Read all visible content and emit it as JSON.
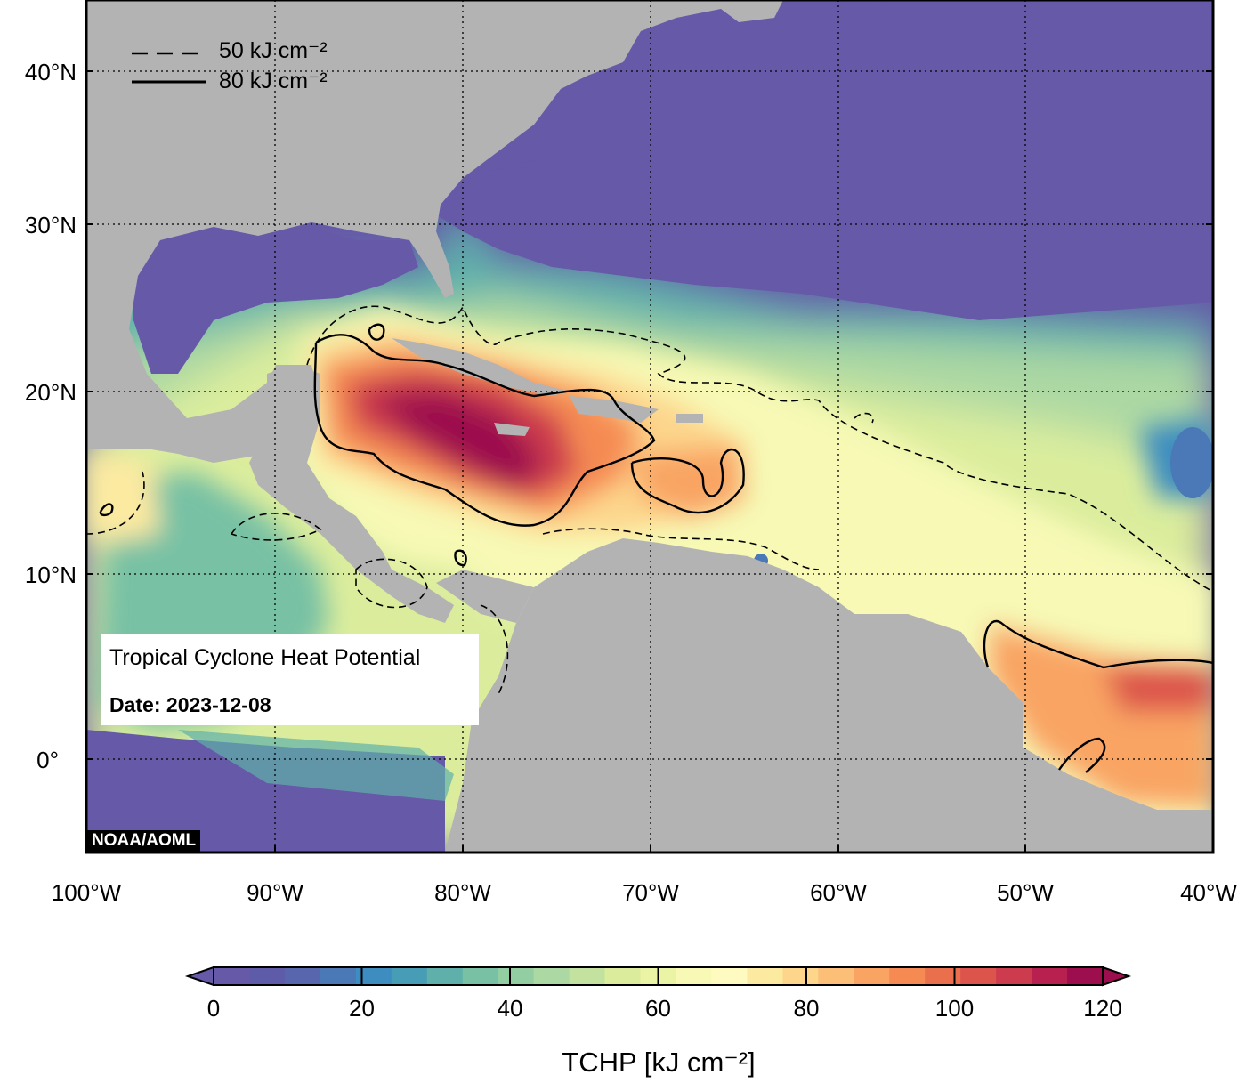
{
  "map": {
    "title": "Tropical Cyclone Heat Potential",
    "date_text": "Date: 2023-12-08",
    "credit": "NOAA/AOML",
    "lat_labels": [
      "40°N",
      "30°N",
      "20°N",
      "10°N",
      "0°"
    ],
    "lon_labels": [
      "100°W",
      "90°W",
      "80°W",
      "70°W",
      "60°W",
      "50°W",
      "40°W"
    ],
    "colors": {
      "ocean_low": "#6659a8",
      "land": "#b3b3b3",
      "frame": "#000000"
    }
  },
  "legend": {
    "dashed_label": "50 kJ cm⁻²",
    "solid_label": "80 kJ cm⁻²"
  },
  "colorbar": {
    "title": "TCHP [kJ cm⁻²]",
    "ticks": [
      "0",
      "20",
      "40",
      "60",
      "80",
      "100",
      "120"
    ],
    "min": 0,
    "max": 120,
    "step": 5,
    "colors": [
      "#6659a8",
      "#5e5ca9",
      "#5866ad",
      "#4b78b6",
      "#3d8dc0",
      "#479db6",
      "#5fb0aa",
      "#78c1a4",
      "#93cea3",
      "#acd8a3",
      "#c4e29f",
      "#dbed9d",
      "#ebf4a4",
      "#f7f9b5",
      "#fffbc0",
      "#fdeaa1",
      "#fdd68c",
      "#fcbf77",
      "#f9a463",
      "#f58b53",
      "#ea6f4c",
      "#dc554c",
      "#cc3b4e",
      "#b7204f",
      "#9c0e4d"
    ]
  }
}
